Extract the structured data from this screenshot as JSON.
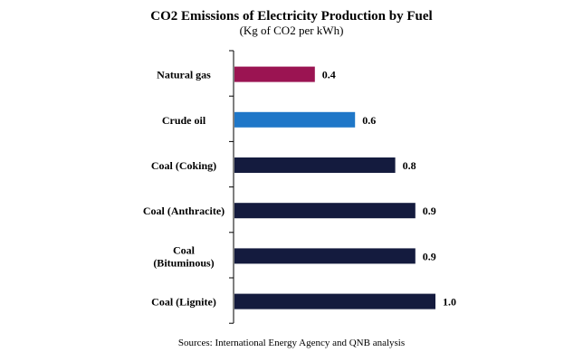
{
  "chart_data": {
    "type": "bar",
    "orientation": "horizontal",
    "title": "CO2 Emissions of Electricity Production by Fuel",
    "subtitle": "(Kg of CO2 per kWh)",
    "xlabel": "",
    "ylabel": "",
    "xlim": [
      0,
      1.0
    ],
    "grid": false,
    "categories": [
      "Natural gas",
      "Crude oil",
      "Coal (Coking)",
      "Coal (Anthracite)",
      "Coal (Bituminous)",
      "Coal (Lignite)"
    ],
    "category_lines": [
      [
        "Natural gas"
      ],
      [
        "Crude oil"
      ],
      [
        "Coal (Coking)"
      ],
      [
        "Coal (Anthracite)"
      ],
      [
        "Coal",
        "(Bituminous)"
      ],
      [
        "Coal (Lignite)"
      ]
    ],
    "values": [
      0.4,
      0.6,
      0.8,
      0.9,
      0.9,
      1.0
    ],
    "labels": [
      "0.4",
      "0.6",
      "0.8",
      "0.9",
      "0.9",
      "1.0"
    ],
    "colors": [
      "#9b1452",
      "#1f77c8",
      "#141b3e",
      "#141b3e",
      "#141b3e",
      "#141b3e"
    ],
    "source": "Sources: International Energy Agency and QNB analysis"
  }
}
